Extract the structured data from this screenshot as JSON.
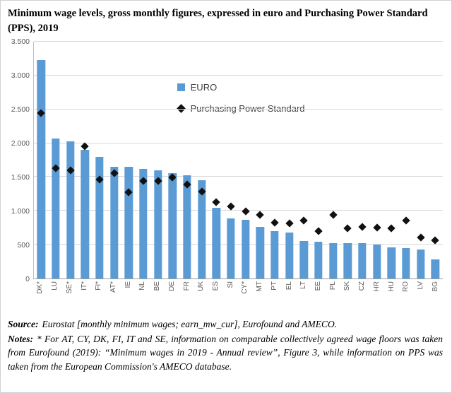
{
  "title": "Minimum wage levels, gross monthly figures, expressed in euro and Purchasing Power Standard (PPS), 2019",
  "chart_data": {
    "type": "bar",
    "overlay": "scatter",
    "title": "Minimum wage levels, gross monthly figures, expressed in euro and Purchasing Power Standard (PPS), 2019",
    "categories": [
      "DK*",
      "LU",
      "SE*",
      "IT*",
      "FI*",
      "AT*",
      "IE",
      "NL",
      "BE",
      "DE",
      "FR",
      "UK",
      "ES",
      "SI",
      "CY*",
      "MT",
      "PT",
      "EL",
      "LT",
      "EE",
      "PL",
      "SK",
      "CZ",
      "HR",
      "HU",
      "RO",
      "LV",
      "BG"
    ],
    "series": [
      {
        "name": "EURO",
        "marker": "square",
        "values": [
          3230,
          2071,
          2025,
          1900,
          1800,
          1655,
          1656,
          1616,
          1594,
          1557,
          1521,
          1453,
          1050,
          887,
          870,
          762,
          700,
          684,
          555,
          540,
          523,
          520,
          519,
          506,
          464,
          446,
          430,
          286
        ]
      },
      {
        "name": "Purchasing Power Standard",
        "marker": "diamond",
        "values": [
          2450,
          1630,
          1600,
          1950,
          1467,
          1557,
          1280,
          1440,
          1440,
          1492,
          1390,
          1290,
          1127,
          1062,
          990,
          941,
          823,
          812,
          855,
          705,
          945,
          740,
          760,
          750,
          745,
          860,
          608,
          568
        ]
      }
    ],
    "ylim": [
      0,
      3500
    ],
    "yticks": [
      {
        "label": "3.500",
        "value": 3500
      },
      {
        "label": "3.000",
        "value": 3000
      },
      {
        "label": "2.500",
        "value": 2500
      },
      {
        "label": "2.000",
        "value": 2000
      },
      {
        "label": "1.500",
        "value": 1500
      },
      {
        "label": "1.000",
        "value": 1000
      },
      {
        "label": "500",
        "value": 500
      },
      {
        "label": "0",
        "value": 0
      }
    ],
    "grid": true,
    "legend_position": "inside-upper-middle",
    "colors": {
      "bar": "#5b9bd5",
      "marker": "#111111",
      "gridline": "#d9d9d9",
      "axis_text": "#595959"
    }
  },
  "footer": {
    "source_label": "Source:",
    "source_text": "Eurostat [monthly minimum wages; earn_mw_cur], Eurofound and AMECO.",
    "notes_label": "Notes:",
    "notes_text": "* For AT, CY, DK, FI, IT and SE, information on comparable collectively agreed wage floors was taken from Eurofound (2019): “Minimum wages in 2019 - Annual review”, Figure 3, while information on PPS was taken from the European Commission's AMECO database."
  }
}
